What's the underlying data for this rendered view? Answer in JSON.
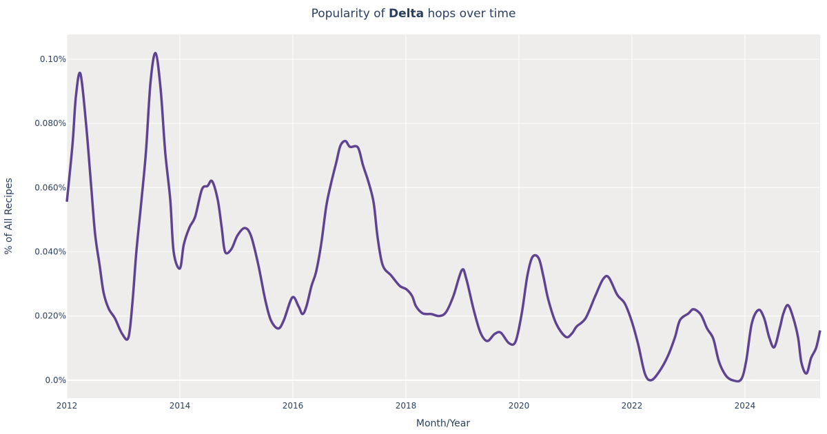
{
  "chart_data": {
    "type": "line",
    "title_prefix": "Popularity of ",
    "title_bold": "Delta",
    "title_suffix": " hops over time",
    "xlabel": "Month/Year",
    "ylabel": "% of All Recipes",
    "xlim": [
      2012.0,
      2025.33
    ],
    "ylim": [
      -0.0056,
      0.1077
    ],
    "xticks": [
      2012,
      2014,
      2016,
      2018,
      2020,
      2022,
      2024
    ],
    "xtick_labels": [
      "2012",
      "2014",
      "2016",
      "2018",
      "2020",
      "2022",
      "2024"
    ],
    "yticks": [
      0,
      0.02,
      0.04,
      0.06,
      0.08,
      0.1
    ],
    "ytick_labels": [
      "0.0%",
      "0.020%",
      "0.040%",
      "0.060%",
      "0.080%",
      "0.10%"
    ],
    "grid": true,
    "colors": {
      "line": "#5e4391",
      "plot_bg": "#efedec",
      "grid": "#ffffff",
      "text": "#2a3f5f"
    },
    "series": [
      {
        "x": [
          2012.0,
          2012.1,
          2012.16,
          2012.24,
          2012.34,
          2012.43,
          2012.5,
          2012.58,
          2012.65,
          2012.74,
          2012.85,
          2012.98,
          2013.09,
          2013.16,
          2013.23,
          2013.32,
          2013.4,
          2013.48,
          2013.57,
          2013.66,
          2013.74,
          2013.83,
          2013.89,
          2014.0,
          2014.07,
          2014.17,
          2014.27,
          2014.39,
          2014.49,
          2014.57,
          2014.67,
          2014.74,
          2014.8,
          2014.91,
          2015.02,
          2015.15,
          2015.26,
          2015.39,
          2015.51,
          2015.61,
          2015.74,
          2015.84,
          2015.99,
          2016.1,
          2016.17,
          2016.24,
          2016.33,
          2016.41,
          2016.5,
          2016.59,
          2016.67,
          2016.77,
          2016.84,
          2016.93,
          2017.01,
          2017.15,
          2017.24,
          2017.34,
          2017.43,
          2017.5,
          2017.59,
          2017.74,
          2017.89,
          2018.01,
          2018.11,
          2018.18,
          2018.3,
          2018.45,
          2018.59,
          2018.71,
          2018.84,
          2018.99,
          2019.07,
          2019.2,
          2019.32,
          2019.44,
          2019.57,
          2019.68,
          2019.82,
          2019.94,
          2020.05,
          2020.15,
          2020.24,
          2020.35,
          2020.43,
          2020.52,
          2020.66,
          2020.83,
          2020.94,
          2021.02,
          2021.18,
          2021.35,
          2021.49,
          2021.59,
          2021.74,
          2021.87,
          2021.99,
          2022.11,
          2022.23,
          2022.34,
          2022.48,
          2022.63,
          2022.76,
          2022.85,
          2023.0,
          2023.09,
          2023.22,
          2023.33,
          2023.44,
          2023.54,
          2023.66,
          2023.78,
          2023.93,
          2024.02,
          2024.12,
          2024.24,
          2024.34,
          2024.43,
          2024.52,
          2024.62,
          2024.68,
          2024.76,
          2024.85,
          2024.94,
          2025.0,
          2025.09,
          2025.17,
          2025.26,
          2025.33
        ],
        "y": [
          0.0556,
          0.0734,
          0.0884,
          0.0955,
          0.0798,
          0.0605,
          0.0455,
          0.0358,
          0.0273,
          0.0223,
          0.0193,
          0.0144,
          0.0133,
          0.024,
          0.04,
          0.056,
          0.0712,
          0.0927,
          0.1019,
          0.0906,
          0.0712,
          0.0562,
          0.04,
          0.0348,
          0.0423,
          0.0476,
          0.0509,
          0.0594,
          0.0605,
          0.062,
          0.0562,
          0.0476,
          0.04,
          0.0408,
          0.0451,
          0.0474,
          0.0449,
          0.0358,
          0.0251,
          0.0187,
          0.0161,
          0.0187,
          0.0258,
          0.023,
          0.0206,
          0.023,
          0.0294,
          0.0337,
          0.0423,
          0.0541,
          0.0609,
          0.068,
          0.073,
          0.0745,
          0.0727,
          0.0725,
          0.067,
          0.0616,
          0.0552,
          0.0444,
          0.0358,
          0.0326,
          0.0294,
          0.0283,
          0.0262,
          0.023,
          0.0208,
          0.0206,
          0.02,
          0.0212,
          0.0262,
          0.0343,
          0.0315,
          0.0219,
          0.0148,
          0.0122,
          0.0144,
          0.0148,
          0.0116,
          0.012,
          0.0208,
          0.0326,
          0.0384,
          0.038,
          0.0326,
          0.0251,
          0.0176,
          0.0135,
          0.0146,
          0.0167,
          0.0193,
          0.0262,
          0.0315,
          0.032,
          0.0266,
          0.024,
          0.0187,
          0.0112,
          0.002,
          0.0,
          0.0026,
          0.0073,
          0.0133,
          0.0187,
          0.0208,
          0.0221,
          0.0204,
          0.0161,
          0.0129,
          0.0058,
          0.0015,
          0.0,
          0.0002,
          0.0058,
          0.0176,
          0.0219,
          0.0193,
          0.0133,
          0.0103,
          0.0165,
          0.0208,
          0.0234,
          0.0197,
          0.0133,
          0.0054,
          0.0021,
          0.0069,
          0.0101,
          0.0155
        ]
      }
    ]
  }
}
